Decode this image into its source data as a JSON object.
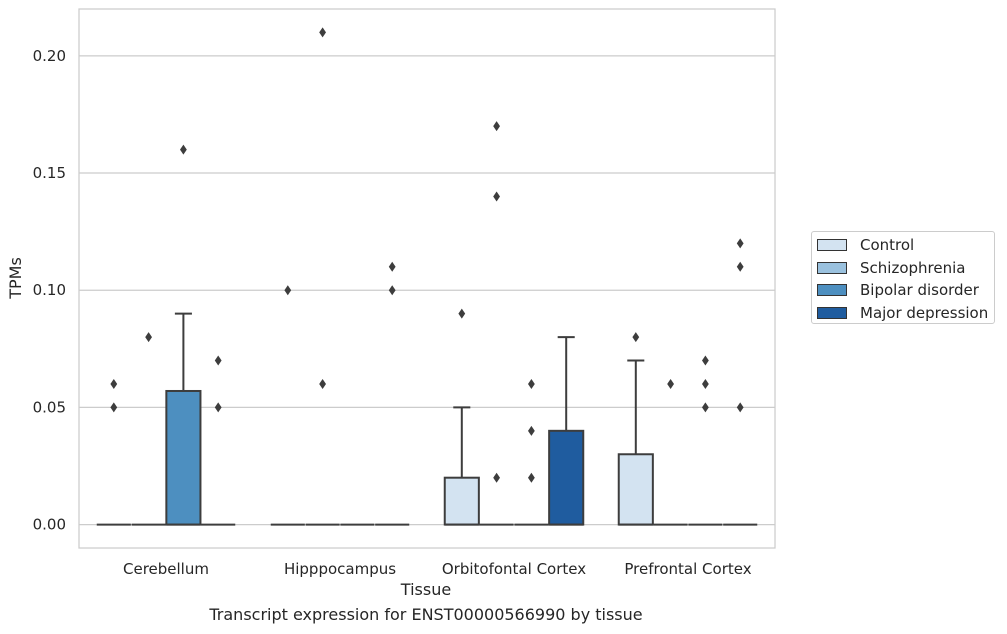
{
  "chart_data": {
    "type": "box",
    "title": "",
    "caption": "Transcript expression for ENST00000566990 by tissue",
    "xlabel": "Tissue",
    "ylabel": "TPMs",
    "ylim": [
      -0.01,
      0.22
    ],
    "yticks": [
      0.0,
      0.05,
      0.1,
      0.15,
      0.2
    ],
    "ytick_labels": [
      "0.00",
      "0.05",
      "0.10",
      "0.15",
      "0.20"
    ],
    "grid": "horizontal",
    "legend_position": "right",
    "categories": [
      "Cerebellum",
      "Hipppocampus",
      "Orbitofontal Cortex",
      "Prefrontal Cortex"
    ],
    "series": [
      {
        "name": "Control",
        "color": "#d3e3f1",
        "boxes": [
          {
            "q1": 0,
            "median": 0,
            "q3": 0,
            "whisker_low": 0,
            "whisker_high": 0,
            "outliers": [
              0.05,
              0.06
            ]
          },
          {
            "q1": 0,
            "median": 0,
            "q3": 0,
            "whisker_low": 0,
            "whisker_high": 0,
            "outliers": [
              0.1
            ]
          },
          {
            "q1": 0,
            "median": 0,
            "q3": 0.02,
            "whisker_low": 0,
            "whisker_high": 0.05,
            "outliers": [
              0.09
            ]
          },
          {
            "q1": 0,
            "median": 0,
            "q3": 0.03,
            "whisker_low": 0,
            "whisker_high": 0.07,
            "outliers": [
              0.08
            ]
          }
        ]
      },
      {
        "name": "Schizophrenia",
        "color": "#9ac1de",
        "boxes": [
          {
            "q1": 0,
            "median": 0,
            "q3": 0,
            "whisker_low": 0,
            "whisker_high": 0,
            "outliers": [
              0.08
            ]
          },
          {
            "q1": 0,
            "median": 0,
            "q3": 0,
            "whisker_low": 0,
            "whisker_high": 0,
            "outliers": [
              0.06,
              0.21
            ]
          },
          {
            "q1": 0,
            "median": 0,
            "q3": 0,
            "whisker_low": 0,
            "whisker_high": 0,
            "outliers": [
              0.02,
              0.14,
              0.17
            ]
          },
          {
            "q1": 0,
            "median": 0,
            "q3": 0,
            "whisker_low": 0,
            "whisker_high": 0,
            "outliers": [
              0.06
            ]
          }
        ]
      },
      {
        "name": "Bipolar disorder",
        "color": "#4d8fc0",
        "boxes": [
          {
            "q1": 0,
            "median": 0,
            "q3": 0.057,
            "whisker_low": 0,
            "whisker_high": 0.09,
            "outliers": [
              0.16
            ]
          },
          {
            "q1": 0,
            "median": 0,
            "q3": 0,
            "whisker_low": 0,
            "whisker_high": 0,
            "outliers": []
          },
          {
            "q1": 0,
            "median": 0,
            "q3": 0,
            "whisker_low": 0,
            "whisker_high": 0,
            "outliers": [
              0.02,
              0.04,
              0.06
            ]
          },
          {
            "q1": 0,
            "median": 0,
            "q3": 0,
            "whisker_low": 0,
            "whisker_high": 0,
            "outliers": [
              0.05,
              0.06,
              0.07
            ]
          }
        ]
      },
      {
        "name": "Major depression",
        "color": "#1f5c9f",
        "boxes": [
          {
            "q1": 0,
            "median": 0,
            "q3": 0,
            "whisker_low": 0,
            "whisker_high": 0,
            "outliers": [
              0.05,
              0.07
            ]
          },
          {
            "q1": 0,
            "median": 0,
            "q3": 0,
            "whisker_low": 0,
            "whisker_high": 0,
            "outliers": [
              0.1,
              0.11
            ]
          },
          {
            "q1": 0,
            "median": 0,
            "q3": 0.04,
            "whisker_low": 0,
            "whisker_high": 0.08,
            "outliers": []
          },
          {
            "q1": 0,
            "median": 0,
            "q3": 0,
            "whisker_low": 0,
            "whisker_high": 0,
            "outliers": [
              0.05,
              0.11,
              0.12
            ]
          }
        ]
      }
    ]
  }
}
